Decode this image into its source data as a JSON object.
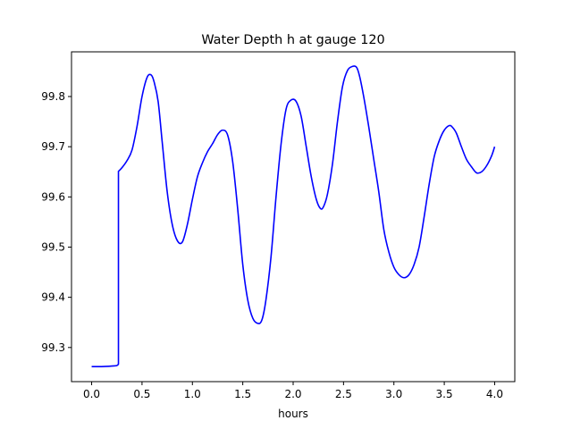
{
  "chart_data": {
    "type": "line",
    "title": "Water Depth h at gauge 120",
    "xlabel": "hours",
    "ylabel": "",
    "xlim": [
      -0.2,
      4.2
    ],
    "ylim": [
      99.232,
      99.889
    ],
    "xticks": [
      0.0,
      0.5,
      1.0,
      1.5,
      2.0,
      2.5,
      3.0,
      3.5,
      4.0
    ],
    "xtick_labels": [
      "0.0",
      "0.5",
      "1.0",
      "1.5",
      "2.0",
      "2.5",
      "3.0",
      "3.5",
      "4.0"
    ],
    "yticks": [
      99.3,
      99.4,
      99.5,
      99.6,
      99.7,
      99.8
    ],
    "ytick_labels": [
      "99.3",
      "99.4",
      "99.5",
      "99.6",
      "99.7",
      "99.8"
    ],
    "grid": false,
    "series": [
      {
        "name": "",
        "color": "#0000ff",
        "x": [
          0.0,
          0.1,
          0.2,
          0.25,
          0.266,
          0.266,
          0.3,
          0.35,
          0.4,
          0.45,
          0.5,
          0.55,
          0.59,
          0.62,
          0.66,
          0.7,
          0.75,
          0.8,
          0.85,
          0.9,
          0.95,
          1.0,
          1.05,
          1.1,
          1.15,
          1.2,
          1.25,
          1.3,
          1.35,
          1.4,
          1.45,
          1.5,
          1.55,
          1.6,
          1.65,
          1.69,
          1.73,
          1.78,
          1.83,
          1.88,
          1.93,
          1.98,
          2.03,
          2.08,
          2.13,
          2.18,
          2.23,
          2.27,
          2.3,
          2.34,
          2.39,
          2.44,
          2.49,
          2.54,
          2.59,
          2.63,
          2.66,
          2.7,
          2.75,
          2.8,
          2.85,
          2.9,
          2.95,
          3.0,
          3.05,
          3.1,
          3.15,
          3.2,
          3.25,
          3.3,
          3.35,
          3.4,
          3.45,
          3.5,
          3.55,
          3.58,
          3.62,
          3.67,
          3.72,
          3.77,
          3.82,
          3.87,
          3.92,
          3.97,
          4.0
        ],
        "y": [
          99.262,
          99.262,
          99.263,
          99.264,
          99.267,
          99.651,
          99.658,
          99.672,
          99.693,
          99.74,
          99.8,
          99.838,
          99.843,
          99.829,
          99.79,
          99.71,
          99.61,
          99.545,
          99.513,
          99.51,
          99.545,
          99.595,
          99.64,
          99.668,
          99.69,
          99.706,
          99.724,
          99.733,
          99.723,
          99.67,
          99.575,
          99.465,
          99.394,
          99.358,
          99.348,
          99.355,
          99.395,
          99.48,
          99.6,
          99.705,
          99.775,
          99.793,
          99.79,
          99.76,
          99.7,
          99.64,
          99.595,
          99.577,
          99.58,
          99.605,
          99.665,
          99.75,
          99.82,
          99.852,
          99.86,
          99.858,
          99.84,
          99.8,
          99.74,
          99.675,
          99.61,
          99.535,
          99.49,
          99.46,
          99.445,
          99.439,
          99.445,
          99.465,
          99.5,
          99.56,
          99.625,
          99.68,
          99.712,
          99.733,
          99.742,
          99.739,
          99.727,
          99.7,
          99.675,
          99.66,
          99.648,
          99.65,
          99.662,
          99.682,
          99.7
        ]
      }
    ]
  }
}
